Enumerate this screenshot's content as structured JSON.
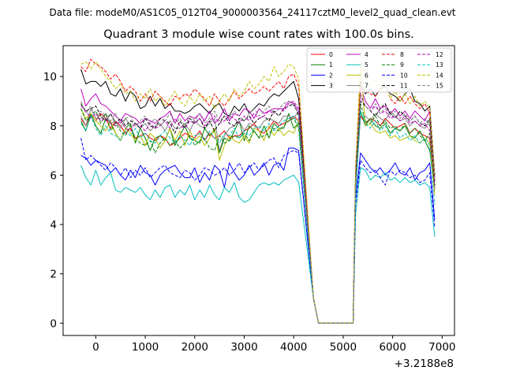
{
  "suptitle": "Data file: modeM0/AS1C05_012T04_9000003564_24117cztM0_level2_quad_clean.evt",
  "chart_data": {
    "type": "line",
    "title": "Quadrant 3 module wise count rates with 100.0s bins.",
    "xlabel": "",
    "ylabel": "",
    "x_offset_label": "+3.2188e8",
    "xlim": [
      -660,
      7250
    ],
    "ylim": [
      -0.5,
      11.25
    ],
    "xticks": [
      0,
      1000,
      2000,
      3000,
      4000,
      5000,
      6000,
      7000
    ],
    "yticks": [
      0,
      2,
      4,
      6,
      8,
      10
    ],
    "grid": false,
    "legend_position": "top-right",
    "legend_columns": 4,
    "x_gap": [
      4300,
      5200
    ],
    "segments": [
      {
        "x_start": -300,
        "step": 100,
        "count": 45
      },
      {
        "x_start": 5250,
        "step": 100,
        "count": 17
      }
    ],
    "series": [
      {
        "name": "0",
        "color": "#ff0000",
        "dashed": false,
        "seg1": [
          8.3,
          8.0,
          8.5,
          8.2,
          8.5,
          8.3,
          7.9,
          8.2,
          8.0,
          7.7,
          7.9,
          7.5,
          7.6,
          7.7,
          7.5,
          7.4,
          7.6,
          7.5,
          7.2,
          7.3,
          7.5,
          7.7,
          7.6,
          7.5,
          7.8,
          7.4,
          7.7,
          7.5,
          7.6,
          7.8,
          7.5,
          7.6,
          7.6,
          7.8,
          7.9,
          8.1,
          7.8,
          7.7,
          7.9,
          8.2,
          8.0,
          8.1,
          8.2,
          8.4,
          8.2
        ],
        "seg2": [
          5.5,
          8.4,
          8.1,
          8.3,
          8.2,
          8.0,
          8.3,
          8.1,
          7.9,
          8.0,
          8.1,
          7.7,
          7.9,
          7.7,
          7.6,
          7.5,
          5.5
        ]
      },
      {
        "name": "1",
        "color": "#008000",
        "dashed": false,
        "seg1": [
          8.2,
          7.8,
          8.5,
          8.0,
          7.7,
          8.3,
          8.1,
          7.7,
          7.4,
          7.9,
          8.1,
          7.3,
          7.9,
          7.5,
          7.0,
          7.5,
          7.6,
          7.4,
          7.9,
          7.2,
          7.6,
          8.0,
          7.5,
          7.4,
          7.3,
          7.9,
          7.6,
          7.8,
          6.9,
          7.5,
          7.4,
          7.8,
          8.2,
          7.4,
          8.0,
          7.8,
          7.5,
          8.0,
          7.5,
          8.1,
          7.9,
          7.9,
          8.5,
          7.9,
          8.1
        ],
        "seg2": [
          5.4,
          8.6,
          8.0,
          8.3,
          8.0,
          7.9,
          8.1,
          7.7,
          7.9,
          7.8,
          8.0,
          7.6,
          7.5,
          7.8,
          7.4,
          7.0,
          5.4
        ]
      },
      {
        "name": "2",
        "color": "#0000ff",
        "dashed": false,
        "seg1": [
          6.8,
          6.7,
          6.4,
          6.6,
          6.5,
          6.4,
          6.1,
          6.3,
          6.0,
          5.8,
          6.2,
          5.9,
          6.4,
          6.1,
          6.0,
          5.6,
          6.0,
          6.2,
          6.3,
          6.4,
          6.1,
          5.9,
          5.9,
          6.3,
          5.7,
          6.1,
          5.8,
          6.4,
          6.2,
          5.5,
          6.5,
          6.1,
          5.8,
          6.0,
          6.4,
          6.0,
          6.2,
          6.5,
          6.0,
          6.4,
          6.5,
          6.2,
          7.1,
          7.1,
          7.0
        ],
        "seg2": [
          5.0,
          6.9,
          6.6,
          6.3,
          6.1,
          6.3,
          6.0,
          6.2,
          6.5,
          6.1,
          6.0,
          6.3,
          5.8,
          6.1,
          6.2,
          6.5,
          4.2
        ]
      },
      {
        "name": "3",
        "color": "#000000",
        "dashed": false,
        "seg1": [
          10.3,
          9.7,
          9.8,
          9.8,
          9.6,
          9.8,
          9.3,
          9.2,
          9.5,
          9.0,
          9.4,
          9.2,
          8.7,
          8.8,
          9.2,
          8.8,
          9.1,
          8.7,
          8.9,
          8.6,
          8.6,
          8.5,
          8.6,
          8.8,
          8.9,
          8.7,
          8.5,
          8.8,
          8.9,
          8.5,
          8.4,
          8.8,
          8.6,
          8.9,
          8.5,
          8.7,
          8.9,
          8.8,
          9.1,
          9.3,
          9.2,
          9.4,
          9.6,
          9.8,
          9.1
        ],
        "seg2": [
          6.0,
          9.8,
          9.3,
          9.5,
          9.2,
          9.5,
          9.6,
          9.3,
          9.2,
          9.0,
          9.3,
          9.5,
          9.0,
          8.9,
          8.6,
          8.8,
          6.0
        ]
      },
      {
        "name": "4",
        "color": "#bf00bf",
        "dashed": false,
        "seg1": [
          9.5,
          8.8,
          9.1,
          9.3,
          8.9,
          8.8,
          8.6,
          8.4,
          8.2,
          8.5,
          8.4,
          8.3,
          8.1,
          8.3,
          8.2,
          8.1,
          8.3,
          8.4,
          8.6,
          8.1,
          8.5,
          8.2,
          8.4,
          8.3,
          8.5,
          8.2,
          8.6,
          8.1,
          8.3,
          8.7,
          8.2,
          8.5,
          8.4,
          8.7,
          8.6,
          8.3,
          8.7,
          8.5,
          8.6,
          8.7,
          8.7,
          8.7,
          9.0,
          8.9,
          8.6
        ],
        "seg2": [
          5.8,
          9.6,
          9.0,
          8.7,
          9.1,
          8.7,
          8.8,
          8.5,
          8.7,
          8.4,
          8.6,
          8.3,
          8.6,
          8.4,
          8.2,
          8.6,
          5.9
        ]
      },
      {
        "name": "5",
        "color": "#00bfbf",
        "dashed": false,
        "seg1": [
          6.4,
          5.9,
          5.6,
          6.2,
          5.6,
          5.9,
          6.1,
          5.4,
          5.3,
          5.5,
          5.4,
          5.3,
          5.5,
          5.2,
          5.0,
          5.4,
          5.1,
          5.5,
          5.6,
          5.1,
          5.4,
          5.2,
          5.6,
          5.0,
          5.4,
          5.1,
          5.6,
          5.2,
          5.0,
          5.5,
          5.3,
          5.7,
          5.1,
          4.9,
          5.0,
          5.3,
          5.6,
          5.7,
          5.6,
          5.7,
          5.6,
          5.8,
          5.9,
          6.0,
          5.7
        ],
        "seg2": [
          4.4,
          6.3,
          6.2,
          5.8,
          6.0,
          5.9,
          6.1,
          5.8,
          5.9,
          5.7,
          5.9,
          5.7,
          5.8,
          5.6,
          5.7,
          5.5,
          3.5
        ]
      },
      {
        "name": "6",
        "color": "#bfbf00",
        "dashed": false,
        "seg1": [
          8.7,
          8.3,
          8.5,
          8.2,
          8.0,
          7.8,
          8.2,
          7.7,
          7.4,
          7.9,
          7.7,
          7.4,
          7.6,
          7.2,
          7.7,
          7.5,
          7.1,
          7.4,
          7.9,
          7.4,
          7.8,
          7.2,
          7.8,
          7.4,
          7.6,
          7.2,
          7.5,
          7.9,
          6.6,
          7.2,
          7.6,
          7.4,
          7.3,
          7.6,
          7.3,
          7.9,
          7.8,
          7.4,
          8.0,
          7.6,
          7.9,
          7.6,
          7.8,
          7.7,
          8.2
        ],
        "seg2": [
          5.2,
          10.4,
          8.0,
          8.1,
          7.8,
          7.7,
          7.8,
          7.5,
          7.6,
          7.4,
          7.5,
          7.6,
          7.4,
          7.3,
          7.5,
          7.3,
          5.2
        ]
      },
      {
        "name": "7",
        "color": "#808080",
        "dashed": false,
        "seg1": [
          8.4,
          8.0,
          8.7,
          8.3,
          8.3,
          8.5,
          8.1,
          8.2,
          7.9,
          8.3,
          8.0,
          8.1,
          7.9,
          8.1,
          7.8,
          8.0,
          8.1,
          7.8,
          8.2,
          7.9,
          7.9,
          8.1,
          7.8,
          8.2,
          8.0,
          7.9,
          8.1,
          8.3,
          7.0,
          7.6,
          7.9,
          8.0,
          8.2,
          7.8,
          8.1,
          8.0,
          7.9,
          8.2,
          8.3,
          8.2,
          8.1,
          8.4,
          8.4,
          8.3,
          8.6
        ],
        "seg2": [
          5.6,
          8.4,
          8.4,
          8.2,
          8.5,
          8.3,
          8.2,
          8.6,
          8.4,
          8.2,
          8.3,
          8.0,
          8.2,
          8.0,
          7.9,
          8.2,
          5.4
        ]
      },
      {
        "name": "8",
        "color": "#ff0000",
        "dashed": true,
        "seg1": [
          10.4,
          10.2,
          10.7,
          10.5,
          10.4,
          10.2,
          9.9,
          10.1,
          9.8,
          9.4,
          9.6,
          9.4,
          9.0,
          9.3,
          9.0,
          9.4,
          9.2,
          9.0,
          8.8,
          9.2,
          9.1,
          9.3,
          9.2,
          9.5,
          9.3,
          9.1,
          8.8,
          9.3,
          9.0,
          8.8,
          9.1,
          9.4,
          9.1,
          9.3,
          9.5,
          9.3,
          9.4,
          9.6,
          9.4,
          9.6,
          9.8,
          9.5,
          10.0,
          10.1,
          9.6
        ],
        "seg2": [
          6.2,
          9.6,
          9.4,
          9.3,
          9.2,
          9.5,
          9.7,
          9.1,
          8.9,
          9.2,
          8.9,
          9.2,
          8.9,
          8.7,
          8.9,
          8.5,
          5.8
        ]
      },
      {
        "name": "9",
        "color": "#008000",
        "dashed": true,
        "seg1": [
          8.7,
          8.2,
          8.4,
          8.6,
          8.1,
          8.5,
          7.8,
          8.1,
          7.8,
          7.6,
          8.0,
          7.5,
          7.3,
          7.2,
          7.4,
          6.9,
          7.3,
          7.5,
          7.2,
          7.4,
          7.1,
          7.3,
          7.6,
          7.2,
          7.4,
          7.5,
          7.1,
          7.0,
          7.6,
          7.3,
          7.4,
          7.6,
          7.5,
          7.7,
          7.4,
          7.8,
          7.5,
          7.6,
          7.7,
          7.9,
          7.8,
          8.0,
          8.2,
          8.3,
          7.9
        ],
        "seg2": [
          5.7,
          8.9,
          8.2,
          8.1,
          8.4,
          8.0,
          8.2,
          7.9,
          8.0,
          7.8,
          8.1,
          7.7,
          7.9,
          7.6,
          7.4,
          7.7,
          5.6
        ]
      },
      {
        "name": "10",
        "color": "#0000ff",
        "dashed": true,
        "seg1": [
          7.5,
          6.6,
          6.8,
          6.6,
          6.4,
          6.2,
          6.5,
          6.3,
          6.0,
          6.3,
          5.9,
          6.2,
          6.0,
          6.3,
          5.9,
          6.1,
          6.3,
          6.4,
          6.1,
          6.0,
          5.9,
          6.2,
          6.1,
          5.8,
          6.0,
          6.3,
          6.2,
          6.0,
          6.1,
          6.3,
          6.0,
          6.2,
          6.5,
          6.1,
          6.3,
          6.5,
          6.2,
          6.4,
          6.6,
          6.7,
          6.3,
          6.8,
          6.9,
          7.0,
          6.9
        ],
        "seg2": [
          4.8,
          6.6,
          6.3,
          6.1,
          6.2,
          5.9,
          5.6,
          6.2,
          6.0,
          6.2,
          6.1,
          5.9,
          6.0,
          5.7,
          5.8,
          6.1,
          3.9
        ]
      },
      {
        "name": "11",
        "color": "#000000",
        "dashed": true,
        "seg1": [
          8.9,
          8.6,
          8.7,
          8.8,
          8.4,
          8.2,
          8.5,
          8.1,
          8.3,
          8.0,
          8.2,
          8.1,
          7.9,
          8.3,
          8.0,
          7.9,
          8.3,
          8.2,
          8.1,
          7.7,
          8.2,
          7.9,
          8.3,
          8.1,
          8.3,
          7.9,
          8.2,
          7.8,
          8.1,
          8.4,
          8.1,
          8.0,
          8.3,
          8.2,
          8.4,
          8.1,
          8.3,
          8.4,
          8.2,
          8.6,
          8.4,
          8.7,
          8.8,
          8.9,
          8.4
        ],
        "seg2": [
          5.9,
          9.0,
          8.8,
          8.6,
          8.4,
          8.7,
          8.9,
          8.5,
          8.3,
          8.6,
          8.4,
          8.2,
          8.4,
          8.1,
          8.0,
          8.3,
          5.6
        ]
      },
      {
        "name": "12",
        "color": "#bf00bf",
        "dashed": true,
        "seg1": [
          8.8,
          8.6,
          8.3,
          8.5,
          8.2,
          8.3,
          8.1,
          8.0,
          8.2,
          7.9,
          7.8,
          8.1,
          8.0,
          7.8,
          8.1,
          7.9,
          8.0,
          8.2,
          7.9,
          8.3,
          8.0,
          7.9,
          8.2,
          8.1,
          8.3,
          8.0,
          8.2,
          8.4,
          8.1,
          8.2,
          8.4,
          8.3,
          8.1,
          8.4,
          8.2,
          8.5,
          8.3,
          8.4,
          8.6,
          8.5,
          8.7,
          8.6,
          8.9,
          9.0,
          8.7
        ],
        "seg2": [
          5.9,
          9.2,
          8.8,
          8.6,
          8.8,
          8.5,
          8.6,
          8.3,
          8.4,
          8.2,
          8.4,
          8.1,
          8.2,
          8.0,
          8.1,
          7.8,
          5.7
        ]
      },
      {
        "name": "13",
        "color": "#00bfbf",
        "dashed": true,
        "seg1": [
          8.1,
          7.8,
          8.4,
          7.9,
          7.6,
          8.0,
          7.7,
          7.6,
          7.4,
          7.8,
          7.6,
          7.9,
          7.5,
          7.7,
          7.4,
          7.3,
          7.6,
          7.8,
          7.5,
          7.3,
          7.6,
          7.4,
          7.2,
          7.6,
          7.7,
          7.4,
          7.8,
          7.5,
          7.3,
          7.7,
          7.6,
          7.9,
          7.5,
          7.8,
          7.6,
          7.9,
          8.0,
          7.8,
          8.1,
          7.8,
          8.0,
          8.2,
          8.3,
          8.4,
          8.0
        ],
        "seg2": [
          5.1,
          8.6,
          8.1,
          7.9,
          8.2,
          7.8,
          8.0,
          7.6,
          7.9,
          7.5,
          7.7,
          7.4,
          7.6,
          7.3,
          7.5,
          7.2,
          4.8
        ]
      },
      {
        "name": "14",
        "color": "#bfbf00",
        "dashed": true,
        "seg1": [
          10.5,
          10.6,
          10.3,
          10.6,
          10.3,
          10.0,
          9.8,
          9.5,
          9.7,
          9.3,
          9.4,
          9.0,
          9.3,
          9.1,
          9.5,
          9.0,
          9.2,
          8.8,
          9.1,
          9.4,
          9.0,
          8.8,
          9.2,
          8.9,
          9.3,
          9.0,
          9.2,
          8.7,
          9.0,
          9.3,
          9.0,
          9.5,
          9.2,
          9.4,
          9.8,
          9.5,
          9.7,
          10.0,
          9.8,
          10.4,
          10.0,
          10.2,
          10.5,
          10.4,
          9.9
        ],
        "seg2": [
          6.4,
          10.6,
          10.0,
          9.6,
          9.9,
          9.4,
          9.7,
          9.1,
          9.4,
          9.0,
          9.3,
          8.9,
          9.2,
          8.8,
          9.0,
          8.7,
          6.0
        ]
      },
      {
        "name": "15",
        "color": "#808080",
        "dashed": true,
        "seg1": [
          9.0,
          8.5,
          8.8,
          8.3,
          8.6,
          8.4,
          8.2,
          8.5,
          8.1,
          8.3,
          8.4,
          8.0,
          8.2,
          8.4,
          8.1,
          8.3,
          8.0,
          8.2,
          8.5,
          8.1,
          8.3,
          8.0,
          8.4,
          8.2,
          8.5,
          8.1,
          8.3,
          8.6,
          8.2,
          8.4,
          8.3,
          8.6,
          8.4,
          8.2,
          8.5,
          8.7,
          8.4,
          8.6,
          8.8,
          8.5,
          8.7,
          8.9,
          9.0,
          8.8,
          8.5
        ],
        "seg2": [
          6.0,
          9.3,
          8.8,
          8.6,
          8.9,
          8.5,
          8.7,
          8.4,
          8.6,
          8.3,
          8.5,
          8.2,
          8.4,
          8.1,
          8.3,
          8.0,
          5.8
        ]
      }
    ]
  }
}
